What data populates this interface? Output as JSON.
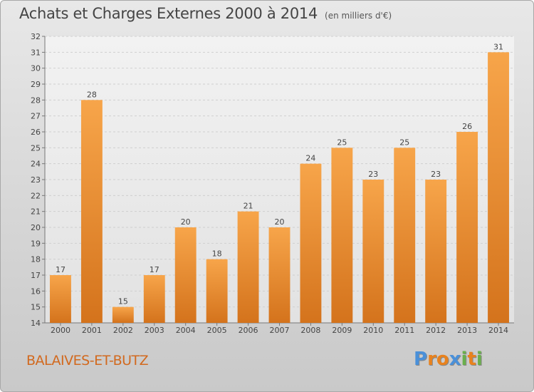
{
  "title": "Achats et Charges Externes 2000 à 2014",
  "unit": "(en milliers d'€)",
  "place": "BALAIVES-ET-BUTZ",
  "logo": {
    "letters": [
      "P",
      "r",
      "o",
      "x",
      "i",
      "t",
      "i"
    ],
    "colors": [
      "#4a90d9",
      "#e8821e",
      "#e8821e",
      "#4a90d9",
      "#6ab04c",
      "#e8821e",
      "#6ab04c"
    ]
  },
  "chart_data": {
    "type": "bar",
    "categories": [
      "2000",
      "2001",
      "2002",
      "2003",
      "2004",
      "2005",
      "2006",
      "2007",
      "2008",
      "2009",
      "2010",
      "2011",
      "2012",
      "2013",
      "2014"
    ],
    "values": [
      17,
      28,
      15,
      17,
      20,
      18,
      21,
      20,
      24,
      25,
      23,
      25,
      23,
      26,
      31
    ],
    "data_labels": [
      "17",
      "28",
      "15",
      "17",
      "20",
      "18",
      "21",
      "20",
      "24",
      "25",
      "23",
      "25",
      "23",
      "26",
      "31"
    ],
    "title": "Achats et Charges Externes 2000 à 2014",
    "ylim": [
      14,
      32
    ],
    "yticks": [
      "14",
      "15",
      "16",
      "17",
      "18",
      "19",
      "20",
      "21",
      "22",
      "23",
      "24",
      "25",
      "26",
      "27",
      "28",
      "29",
      "30",
      "31",
      "32"
    ],
    "grid": true,
    "bar_color_top": "#f7a54a",
    "bar_color_bottom": "#d4731c"
  }
}
